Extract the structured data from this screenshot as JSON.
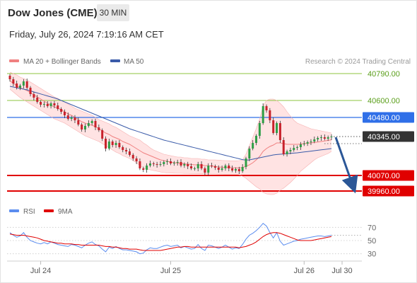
{
  "header": {
    "instrument": "Dow Jones (CME)",
    "timeframe": "30 MIN",
    "datetime": "Friday, July 26, 2024 7:19:16 AM CET"
  },
  "colors": {
    "ma20": "#f08080",
    "bollinger_fill": "#ffdede",
    "ma50": "#3a5ba9",
    "support": "#e00000",
    "pivot": "#2f6fe8",
    "resistance": "#8dc63f",
    "candle_up": "#2e9e46",
    "candle_down": "#c8212b",
    "rsi": "#5b8def",
    "rsi_ma": "#e00000",
    "projection_arrow": "#2b5797",
    "last_price": "#333333"
  },
  "chart_data": [
    {
      "type": "candlestick",
      "legend": [
        "MA 20 + Bollinger Bands",
        "MA 50"
      ],
      "watermark": "Research © 2024 Trading Central",
      "ylim": [
        39900,
        40830
      ],
      "x_tick_labels": [
        "Jul 24",
        "Jul 25",
        "Jul 26",
        "Jul 30"
      ],
      "levels": [
        {
          "value": 40790,
          "label": "40790.00",
          "kind": "resistance"
        },
        {
          "value": 40600,
          "label": "40600.00",
          "kind": "resistance"
        },
        {
          "value": 40480,
          "label": "40480.00",
          "kind": "pivot"
        },
        {
          "value": 40345,
          "label": "40345.00",
          "kind": "last"
        },
        {
          "value": 40070,
          "label": "40070.00",
          "kind": "support"
        },
        {
          "value": 39960,
          "label": "39960.00",
          "kind": "support"
        }
      ],
      "projection": {
        "from": 40340,
        "to": 39970
      },
      "close": [
        40750,
        40720,
        40690,
        40705,
        40735,
        40690,
        40645,
        40620,
        40590,
        40570,
        40575,
        40560,
        40580,
        40565,
        40540,
        40520,
        40495,
        40470,
        40480,
        40460,
        40430,
        40395,
        40420,
        40440,
        40455,
        40410,
        40390,
        40330,
        40260,
        40310,
        40285,
        40300,
        40270,
        40250,
        40240,
        40215,
        40190,
        40170,
        40120,
        40110,
        40140,
        40155,
        40150,
        40145,
        40150,
        40165,
        40170,
        40155,
        40160,
        40165,
        40140,
        40150,
        40135,
        40120,
        40120,
        40150,
        40120,
        40090,
        40140,
        40135,
        40125,
        40110,
        40120,
        40140,
        40120,
        40105,
        40115,
        40100,
        40130,
        40190,
        40260,
        40300,
        40350,
        40440,
        40560,
        40530,
        40460,
        40370,
        40440,
        40320,
        40220,
        40240,
        40250,
        40265,
        40270,
        40290,
        40295,
        40305,
        40310,
        40325,
        40335,
        40340,
        40330,
        40340,
        40345
      ],
      "ma20": [
        40740,
        40720,
        40705,
        40690,
        40680,
        40670,
        40655,
        40640,
        40625,
        40610,
        40595,
        40580,
        40565,
        40555,
        40545,
        40535,
        40520,
        40505,
        40495,
        40480,
        40465,
        40450,
        40440,
        40430,
        40425,
        40415,
        40400,
        40385,
        40370,
        40360,
        40345,
        40335,
        40325,
        40310,
        40300,
        40290,
        40275,
        40260,
        40245,
        40230,
        40220,
        40210,
        40200,
        40190,
        40180,
        40175,
        40170,
        40165,
        40160,
        40158,
        40155,
        40152,
        40150,
        40148,
        40145,
        40145,
        40143,
        40140,
        40138,
        40136,
        40134,
        40130,
        40128,
        40127,
        40126,
        40125,
        40124,
        40124,
        40125,
        40135,
        40145,
        40160,
        40180,
        40205,
        40240,
        40260,
        40275,
        40285,
        40300,
        40300,
        40295,
        40290,
        40290,
        40290,
        40290,
        40292,
        40295,
        40298,
        40300,
        40303,
        40306,
        40310,
        40314,
        40318,
        40322
      ],
      "bb_upper": [
        40800,
        40790,
        40780,
        40765,
        40755,
        40745,
        40730,
        40715,
        40700,
        40685,
        40670,
        40655,
        40640,
        40625,
        40615,
        40600,
        40590,
        40575,
        40560,
        40545,
        40535,
        40525,
        40515,
        40505,
        40495,
        40480,
        40465,
        40455,
        40445,
        40435,
        40420,
        40410,
        40395,
        40380,
        40365,
        40350,
        40340,
        40330,
        40320,
        40300,
        40285,
        40265,
        40250,
        40240,
        40230,
        40220,
        40215,
        40210,
        40205,
        40200,
        40200,
        40195,
        40195,
        40190,
        40190,
        40190,
        40185,
        40185,
        40180,
        40180,
        40180,
        40178,
        40176,
        40175,
        40174,
        40173,
        40173,
        40175,
        40180,
        40220,
        40280,
        40340,
        40400,
        40470,
        40560,
        40600,
        40610,
        40610,
        40600,
        40580,
        40555,
        40520,
        40490,
        40460,
        40440,
        40430,
        40420,
        40410,
        40400,
        40395,
        40390,
        40385,
        40380,
        40375,
        40370
      ],
      "bb_lower": [
        40680,
        40660,
        40640,
        40620,
        40605,
        40590,
        40575,
        40560,
        40545,
        40530,
        40515,
        40500,
        40485,
        40470,
        40460,
        40450,
        40440,
        40425,
        40410,
        40395,
        40380,
        40365,
        40350,
        40340,
        40330,
        40320,
        40310,
        40295,
        40280,
        40265,
        40250,
        40235,
        40225,
        40210,
        40200,
        40190,
        40175,
        40160,
        40140,
        40125,
        40115,
        40110,
        40105,
        40100,
        40095,
        40090,
        40088,
        40087,
        40086,
        40085,
        40085,
        40084,
        40084,
        40083,
        40083,
        40082,
        40082,
        40081,
        40081,
        40080,
        40080,
        40079,
        40079,
        40078,
        40078,
        40078,
        40078,
        40075,
        40065,
        40050,
        40030,
        40010,
        39990,
        39975,
        39950,
        39940,
        39935,
        39935,
        39945,
        39965,
        39980,
        40000,
        40020,
        40045,
        40070,
        40100,
        40120,
        40140,
        40160,
        40180,
        40195,
        40205,
        40215,
        40225,
        40240
      ],
      "ma50": [
        40700,
        40695,
        40690,
        40685,
        40680,
        40675,
        40668,
        40660,
        40653,
        40646,
        40639,
        40632,
        40625,
        40618,
        40610,
        40600,
        40590,
        40580,
        40570,
        40560,
        40550,
        40540,
        40530,
        40520,
        40510,
        40500,
        40490,
        40480,
        40470,
        40460,
        40450,
        40440,
        40430,
        40420,
        40410,
        40400,
        40392,
        40384,
        40376,
        40368,
        40360,
        40352,
        40344,
        40336,
        40328,
        40320,
        40314,
        40308,
        40302,
        40296,
        40290,
        40284,
        40278,
        40272,
        40266,
        40260,
        40254,
        40248,
        40242,
        40236,
        40230,
        40224,
        40218,
        40212,
        40206,
        40200,
        40194,
        40188,
        40182,
        40178,
        40180,
        40185,
        40190,
        40195,
        40200,
        40205,
        40210,
        40215,
        40218,
        40220,
        40222,
        40224,
        40226,
        40228,
        40230,
        40233,
        40236,
        40239,
        40242,
        40245,
        40248,
        40251,
        40254,
        40257,
        40260
      ]
    },
    {
      "type": "line",
      "legend": [
        "RSI",
        "9MA"
      ],
      "ylim": [
        20,
        80
      ],
      "y_ticks": [
        70,
        50,
        30
      ],
      "series": [
        {
          "name": "RSI",
          "values": [
            62,
            58,
            55,
            57,
            62,
            55,
            50,
            48,
            46,
            45,
            47,
            45,
            48,
            46,
            44,
            43,
            42,
            41,
            44,
            43,
            41,
            39,
            43,
            46,
            48,
            44,
            42,
            37,
            33,
            40,
            38,
            41,
            38,
            36,
            36,
            35,
            34,
            33,
            30,
            31,
            36,
            39,
            38,
            38,
            40,
            42,
            43,
            41,
            42,
            43,
            39,
            41,
            39,
            37,
            38,
            44,
            38,
            35,
            43,
            42,
            40,
            38,
            40,
            43,
            40,
            37,
            39,
            38,
            44,
            52,
            58,
            61,
            65,
            70,
            76,
            72,
            62,
            54,
            62,
            49,
            43,
            45,
            47,
            49,
            50,
            52,
            53,
            54,
            55,
            56,
            57,
            57,
            56,
            57,
            58
          ]
        },
        {
          "name": "9MA",
          "values": [
            60,
            59,
            58,
            58,
            58,
            57,
            56,
            55,
            54,
            52,
            50,
            49,
            48,
            47,
            46,
            46,
            45,
            45,
            45,
            44,
            44,
            43,
            43,
            43,
            43,
            43,
            43,
            42,
            41,
            41,
            40,
            40,
            39,
            38,
            38,
            37,
            37,
            37,
            36,
            35,
            35,
            35,
            35,
            35,
            35,
            36,
            37,
            38,
            39,
            40,
            40,
            41,
            41,
            40,
            40,
            40,
            40,
            40,
            40,
            40,
            40,
            40,
            40,
            40,
            40,
            40,
            40,
            39,
            40,
            41,
            43,
            45,
            48,
            52,
            56,
            59,
            61,
            62,
            62,
            61,
            59,
            57,
            55,
            53,
            51,
            50,
            50,
            50,
            50,
            51,
            52,
            53,
            54,
            55,
            56
          ]
        }
      ]
    }
  ]
}
